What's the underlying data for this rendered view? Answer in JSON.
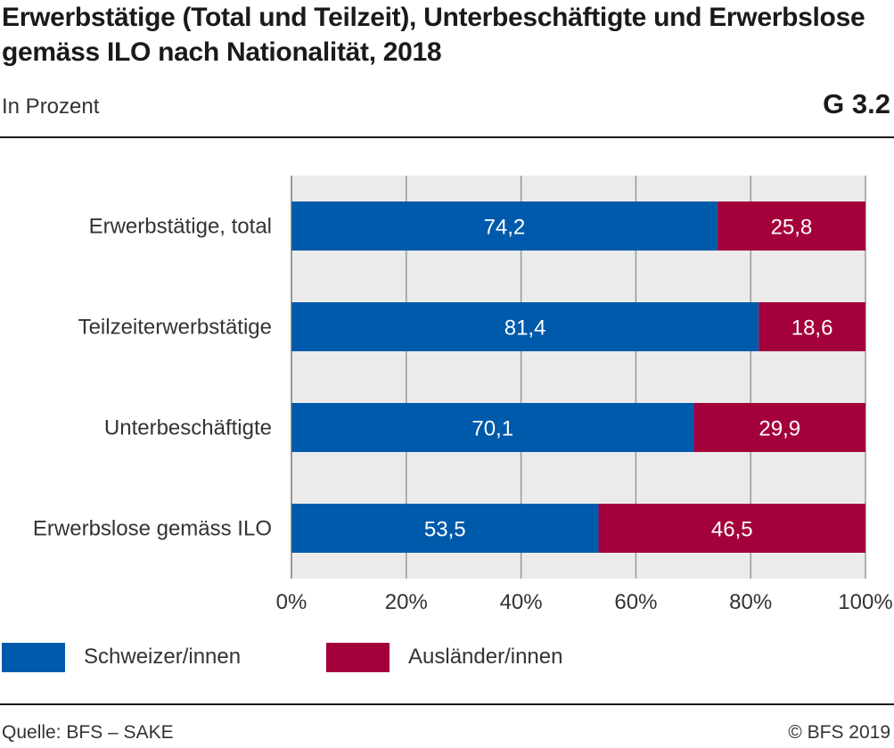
{
  "header": {
    "title": "Erwerbstätige (Total und Teilzeit), Unterbeschäftigte und Erwerbslose gemäss ILO nach Nationalität, 2018",
    "subtitle": "In Prozent",
    "code": "G 3.2"
  },
  "footer": {
    "source": "Quelle: BFS – SAKE",
    "copyright": "© BFS 2019"
  },
  "colors": {
    "plot_background": "#ebebeb",
    "grid": "#999999",
    "series_0": "#005aab",
    "series_1": "#a4003b"
  },
  "chart_data": {
    "type": "bar",
    "orientation": "horizontal",
    "stacked": true,
    "categories": [
      "Erwerbstätige, total",
      "Teilzeiterwerbstätige",
      "Unterbeschäftigte",
      "Erwerbslose gemäss ILO"
    ],
    "series": [
      {
        "name": "Schweizer/innen",
        "values": [
          74.2,
          81.4,
          70.1,
          53.5
        ],
        "labels": [
          "74,2",
          "81,4",
          "70,1",
          "53,5"
        ],
        "color": "#005aab"
      },
      {
        "name": "Ausländer/innen",
        "values": [
          25.8,
          18.6,
          29.9,
          46.5
        ],
        "labels": [
          "25,8",
          "18,6",
          "29,9",
          "46,5"
        ],
        "color": "#a4003b"
      }
    ],
    "xlim": [
      0,
      100
    ],
    "xticks": [
      0,
      20,
      40,
      60,
      80,
      100
    ],
    "xtick_labels": [
      "0%",
      "20%",
      "40%",
      "60%",
      "80%",
      "100%"
    ],
    "grid": true,
    "legend": "bottom-left"
  }
}
